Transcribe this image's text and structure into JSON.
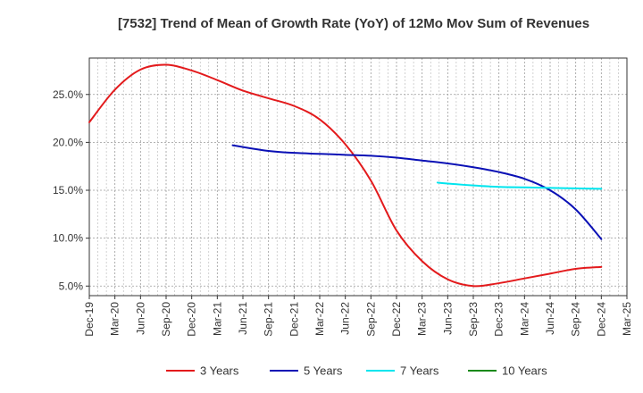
{
  "chart_data": {
    "type": "line",
    "title": "[7532]  Trend of Mean of Growth Rate (YoY) of 12Mo Mov Sum of Revenues",
    "xlabel": "",
    "ylabel": "",
    "x_ticks": [
      "Dec-19",
      "Mar-20",
      "Jun-20",
      "Sep-20",
      "Dec-20",
      "Mar-21",
      "Jun-21",
      "Sep-21",
      "Dec-21",
      "Mar-22",
      "Jun-22",
      "Sep-22",
      "Dec-22",
      "Mar-23",
      "Jun-23",
      "Sep-23",
      "Dec-23",
      "Mar-24",
      "Jun-24",
      "Sep-24",
      "Dec-24",
      "Mar-25"
    ],
    "y_ticks": [
      "5.0%",
      "10.0%",
      "15.0%",
      "20.0%",
      "25.0%"
    ],
    "y_tick_values": [
      5,
      10,
      15,
      20,
      25
    ],
    "ylim": [
      4.0,
      28.8
    ],
    "grid": true,
    "legend_position": "bottom",
    "series": [
      {
        "name": "3 Years",
        "color": "#e31a1c",
        "points": [
          [
            0,
            22.1
          ],
          [
            1,
            25.5
          ],
          [
            2,
            27.6
          ],
          [
            3,
            28.1
          ],
          [
            4,
            27.5
          ],
          [
            5,
            26.5
          ],
          [
            6,
            25.4
          ],
          [
            7,
            24.6
          ],
          [
            8,
            23.8
          ],
          [
            9,
            22.4
          ],
          [
            10,
            19.8
          ],
          [
            11,
            16.0
          ],
          [
            12,
            10.8
          ],
          [
            13,
            7.6
          ],
          [
            14,
            5.7
          ],
          [
            15,
            5.0
          ],
          [
            16,
            5.3
          ],
          [
            17,
            5.8
          ],
          [
            18,
            6.3
          ],
          [
            19,
            6.8
          ],
          [
            20,
            7.0
          ]
        ]
      },
      {
        "name": "5 Years",
        "color": "#0a10b5",
        "points": [
          [
            5.6,
            19.7
          ],
          [
            7,
            19.1
          ],
          [
            8,
            18.9
          ],
          [
            9,
            18.8
          ],
          [
            10,
            18.7
          ],
          [
            11,
            18.6
          ],
          [
            12,
            18.4
          ],
          [
            13,
            18.1
          ],
          [
            14,
            17.8
          ],
          [
            15,
            17.4
          ],
          [
            16,
            16.9
          ],
          [
            17,
            16.2
          ],
          [
            18,
            15.0
          ],
          [
            19,
            13.0
          ],
          [
            20,
            9.9
          ]
        ]
      },
      {
        "name": "7 Years",
        "color": "#00e5ee",
        "points": [
          [
            13.6,
            15.8
          ],
          [
            14,
            15.7
          ],
          [
            15,
            15.5
          ],
          [
            16,
            15.35
          ],
          [
            17,
            15.3
          ],
          [
            18,
            15.25
          ],
          [
            19,
            15.2
          ],
          [
            20,
            15.15
          ]
        ]
      },
      {
        "name": "10 Years",
        "color": "#1a8a1a",
        "points": []
      }
    ]
  }
}
